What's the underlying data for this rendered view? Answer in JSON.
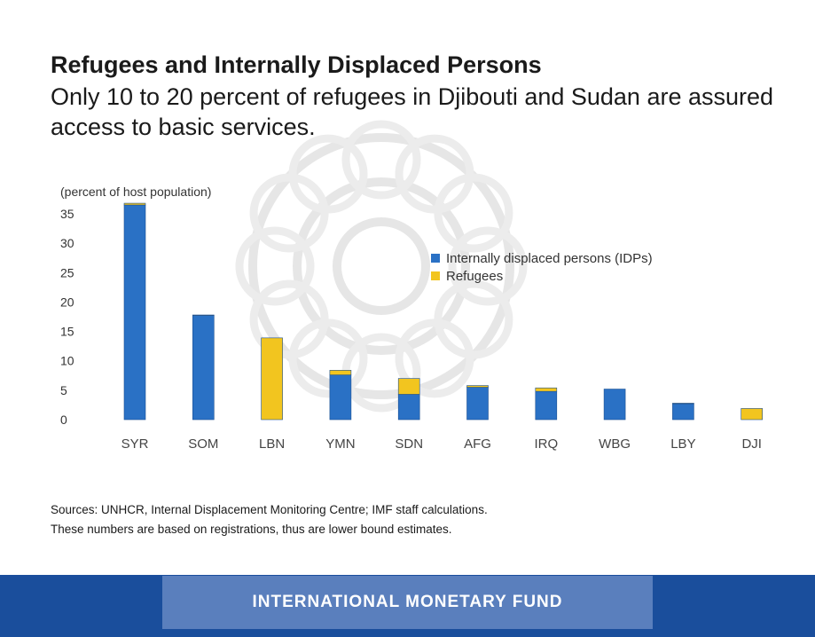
{
  "header": {
    "title": "Refugees and Internally Displaced Persons",
    "subtitle": "Only 10 to 20 percent of refugees in Djibouti and Sudan are assured access to basic services."
  },
  "colors": {
    "idp": "#2a71c5",
    "refugees": "#f2c51f",
    "footer_band": "#1a4e9c",
    "footer_label_bg": "#5a7fbd"
  },
  "chart_data": {
    "type": "bar",
    "stacked": true,
    "ylabel": "(percent of host population)",
    "ylim": [
      0,
      35
    ],
    "yticks": [
      0,
      5,
      10,
      15,
      20,
      25,
      30,
      35
    ],
    "grid": false,
    "legend_position": "upper-right",
    "categories": [
      "SYR",
      "SOM",
      "LBN",
      "YMN",
      "SDN",
      "AFG",
      "IRQ",
      "WBG",
      "LBY",
      "DJI"
    ],
    "series": [
      {
        "name": "Internally displaced persons (IDPs)",
        "color": "#2a71c5",
        "values": [
          36.5,
          17.7,
          0,
          7.6,
          4.3,
          5.5,
          4.8,
          5.2,
          2.7,
          0
        ]
      },
      {
        "name": "Refugees",
        "color": "#f2c51f",
        "values": [
          0.3,
          0.1,
          13.9,
          0.8,
          2.7,
          0.3,
          0.6,
          0,
          0.1,
          1.9
        ]
      }
    ]
  },
  "notes": {
    "sources": "Sources: UNHCR, Internal Displacement Monitoring Centre; IMF staff calculations.",
    "caveat": "These numbers are based on registrations, thus are lower bound estimates."
  },
  "footer": {
    "label": "INTERNATIONAL MONETARY FUND"
  }
}
